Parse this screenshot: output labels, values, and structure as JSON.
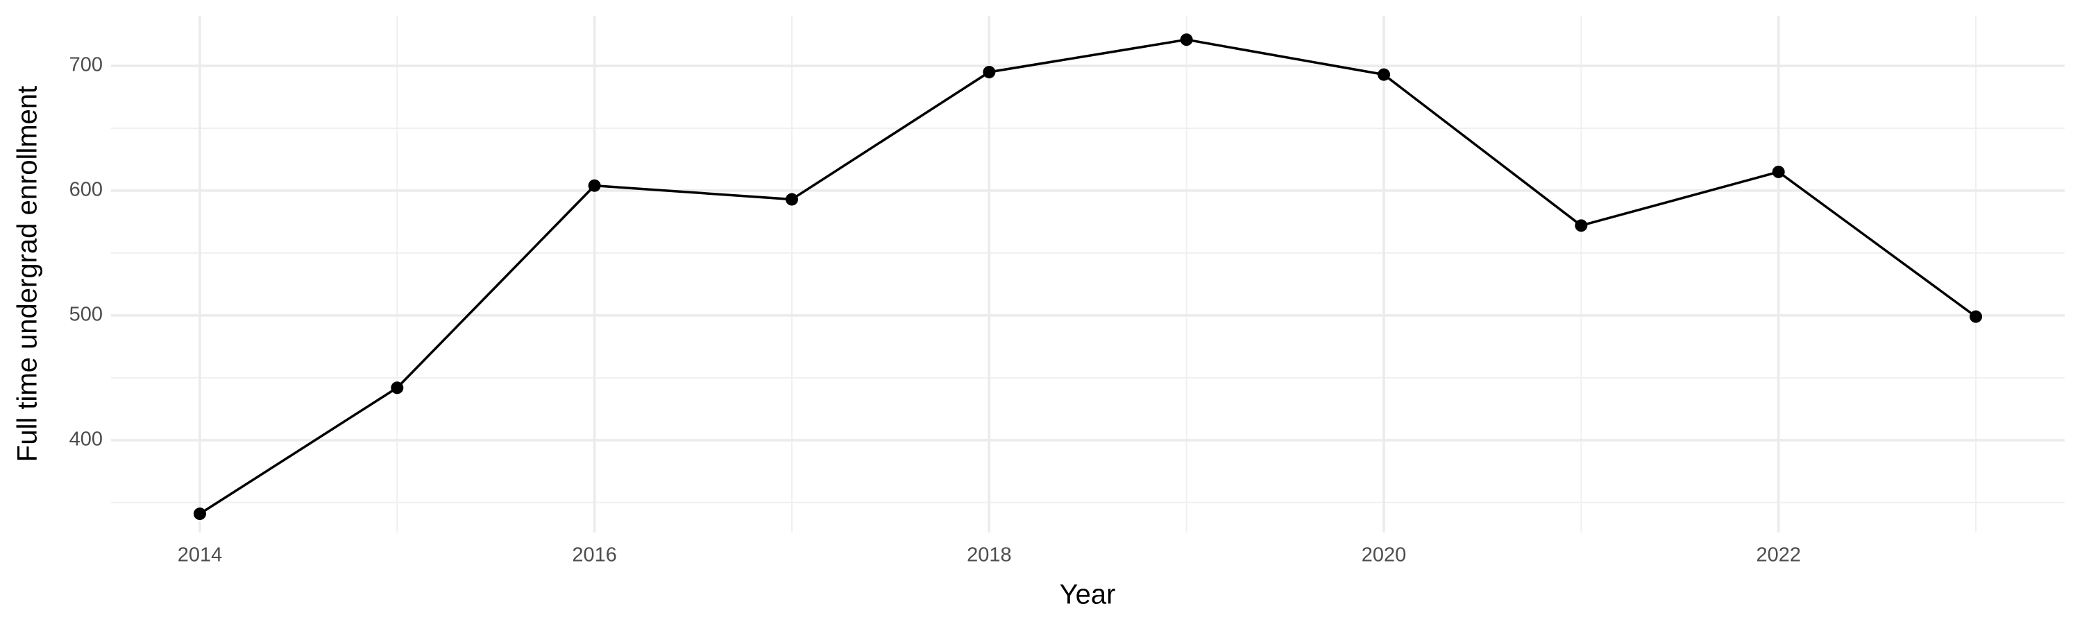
{
  "chart_data": {
    "type": "line",
    "x_label": "Year",
    "y_label": "Full time undergrad enrollment",
    "x": [
      2014,
      2015,
      2016,
      2017,
      2018,
      2019,
      2020,
      2021,
      2022,
      2023
    ],
    "series": [
      {
        "color": "#000000",
        "values": [
          341,
          442,
          604,
          593,
          695,
          721,
          693,
          572,
          615,
          499
        ]
      }
    ],
    "xlim": [
      2013.55,
      2023.45
    ],
    "xticks": [
      2014,
      2016,
      2018,
      2020,
      2022
    ],
    "x_minor_ticks": [
      2015,
      2017,
      2019,
      2021,
      2023
    ],
    "ylim": [
      326,
      740
    ],
    "yticks": [
      400,
      500,
      600,
      700
    ],
    "y_minor_ticks": [
      350,
      450,
      550,
      650
    ],
    "grid": true
  }
}
